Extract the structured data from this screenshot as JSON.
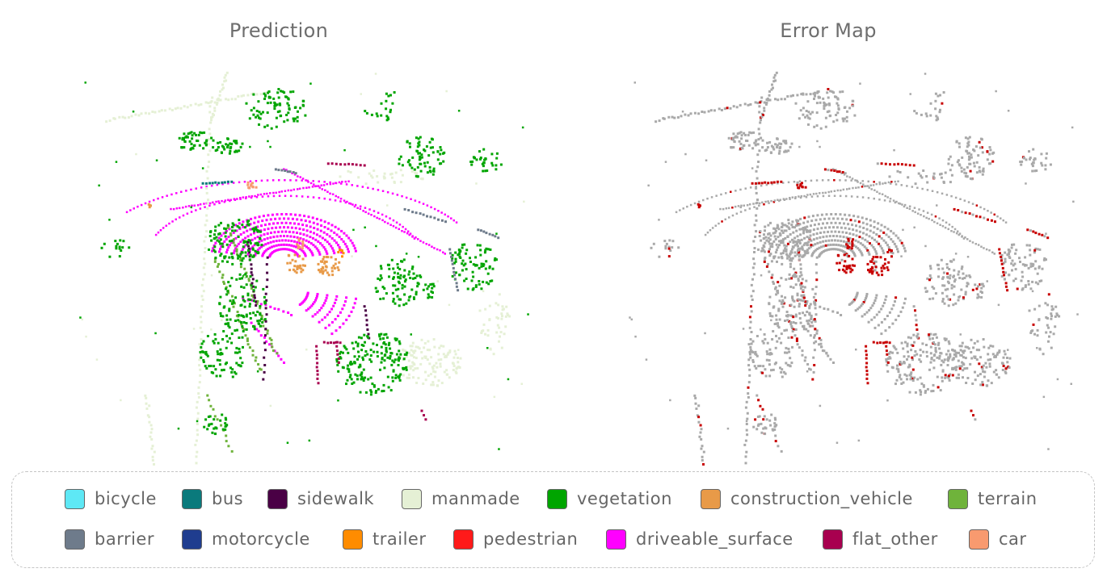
{
  "panels": [
    {
      "title": "Prediction"
    },
    {
      "title": "Error Map"
    }
  ],
  "legend": {
    "rows": [
      [
        {
          "label": "bicycle",
          "color": "#5ee8f5"
        },
        {
          "label": "bus",
          "color": "#0a7a7c"
        },
        {
          "label": "sidewalk",
          "color": "#4a0045"
        },
        {
          "label": "manmade",
          "color": "#e5f0d5"
        },
        {
          "label": "vegetation",
          "color": "#00a500"
        },
        {
          "label": "construction_vehicle",
          "color": "#e89a48"
        },
        {
          "label": "terrain",
          "color": "#6fb33b"
        }
      ],
      [
        {
          "label": "barrier",
          "color": "#6e7b8b"
        },
        {
          "label": "motorcycle",
          "color": "#1f3d8f"
        },
        {
          "label": "trailer",
          "color": "#ff8c00"
        },
        {
          "label": "pedestrian",
          "color": "#ff1a1a"
        },
        {
          "label": "driveable_surface",
          "color": "#ff00ff"
        },
        {
          "label": "flat_other",
          "color": "#a8004f"
        },
        {
          "label": "car",
          "color": "#f89a6f"
        }
      ]
    ]
  },
  "error_map": {
    "correct_color": "#a9a9a9",
    "error_color": "#c80000"
  }
}
